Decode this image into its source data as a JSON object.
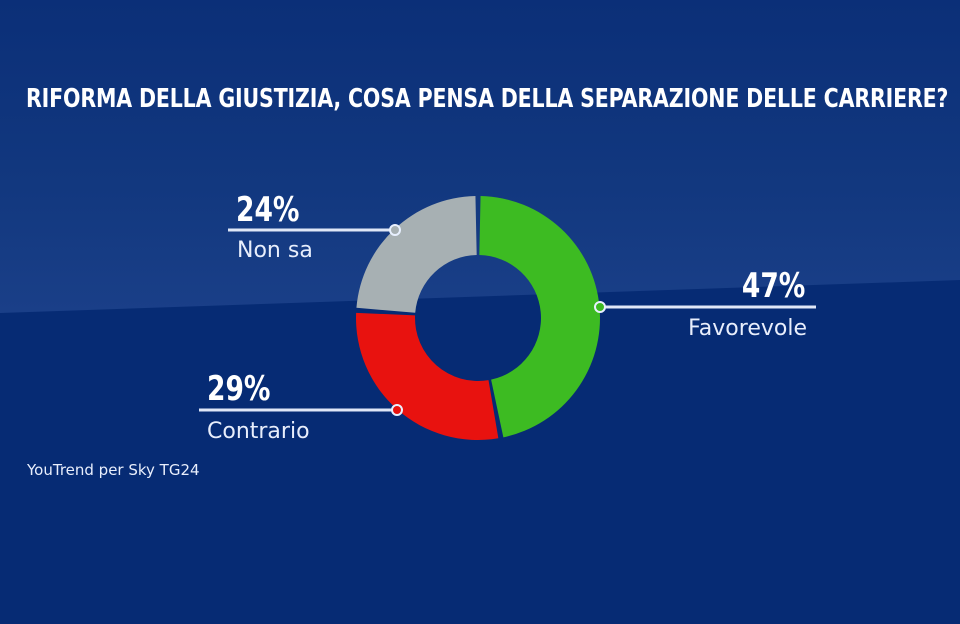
{
  "title": "RIFORMA DELLA GIUSTIZIA, COSA PENSA DELLA SEPARAZIONE DELLE CARRIERE?",
  "source": "YouTrend per Sky TG24",
  "colors": {
    "background_top": "#0d3380",
    "background_band": "#183d86",
    "background_bottom": "#062b74",
    "favorevole": "#3dbb22",
    "contrario": "#e8120f",
    "non_sa": "#a7b0b3",
    "leader_line": "#dfe7f7"
  },
  "slices": [
    {
      "label": "Favorevole",
      "pct_text": "47%",
      "value": 47,
      "color": "#3dbb22"
    },
    {
      "label": "Contrario",
      "pct_text": "29%",
      "value": 29,
      "color": "#e8120f"
    },
    {
      "label": "Non sa",
      "pct_text": "24%",
      "value": 24,
      "color": "#a7b0b3"
    }
  ],
  "chart_data": {
    "type": "pie",
    "subtype": "donut",
    "title": "RIFORMA DELLA GIUSTIZIA, COSA PENSA DELLA SEPARAZIONE DELLE CARRIERE?",
    "categories": [
      "Favorevole",
      "Contrario",
      "Non sa"
    ],
    "values": [
      47,
      29,
      24
    ],
    "unit": "%",
    "colors": [
      "#3dbb22",
      "#e8120f",
      "#a7b0b3"
    ],
    "source": "YouTrend per Sky TG24",
    "legend": "none (callout labels with leader lines)"
  }
}
